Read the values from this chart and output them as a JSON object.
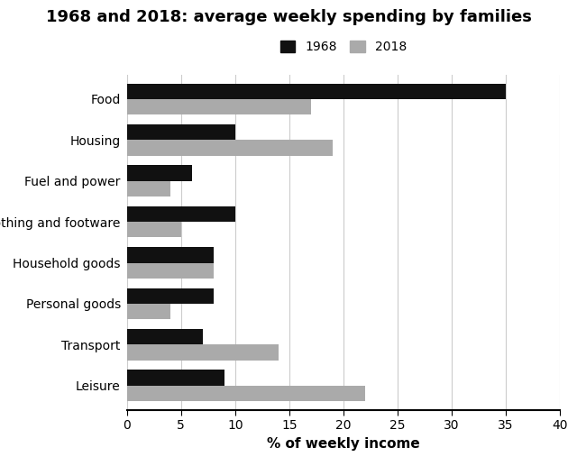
{
  "title": "1968 and 2018: average weekly spending by families",
  "xlabel": "% of weekly income",
  "categories": [
    "Leisure",
    "Transport",
    "Personal goods",
    "Household goods",
    "Clothing and footware",
    "Fuel and power",
    "Housing",
    "Food"
  ],
  "values_1968": [
    9,
    7,
    8,
    8,
    10,
    6,
    10,
    35
  ],
  "values_2018": [
    22,
    14,
    4,
    8,
    5,
    4,
    19,
    17
  ],
  "color_1968": "#111111",
  "color_2018": "#aaaaaa",
  "xlim": [
    0,
    40
  ],
  "xticks": [
    0,
    5,
    10,
    15,
    20,
    25,
    30,
    35,
    40
  ],
  "legend_labels": [
    "1968",
    "2018"
  ],
  "figsize": [
    6.4,
    5.17
  ],
  "dpi": 100,
  "bar_height": 0.38,
  "title_fontsize": 13,
  "label_fontsize": 11,
  "tick_fontsize": 10
}
